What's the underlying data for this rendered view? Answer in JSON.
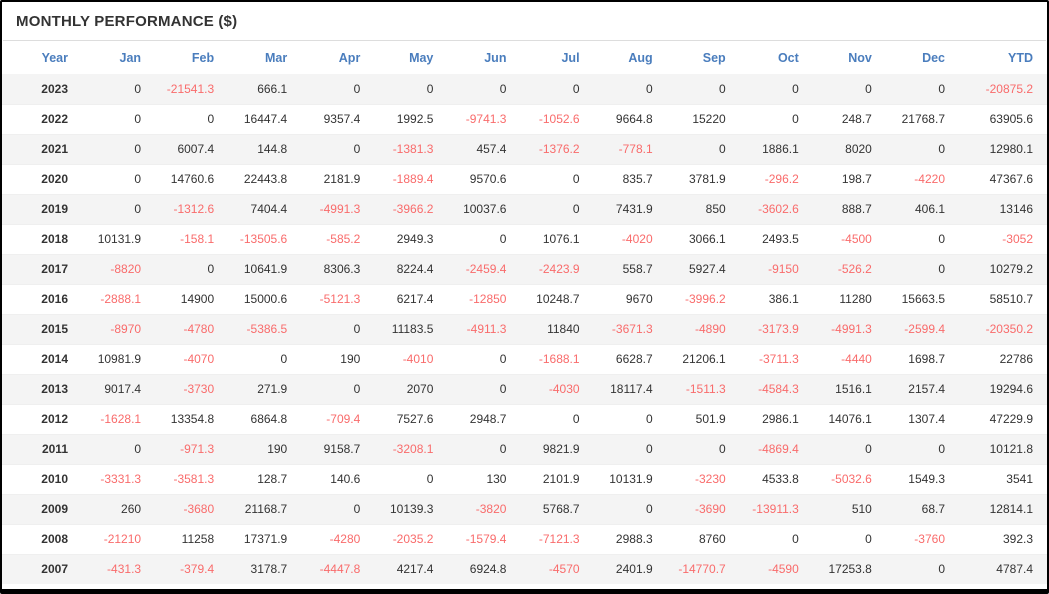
{
  "widget": {
    "title": "MONTHLY PERFORMANCE ($)"
  },
  "colors": {
    "header_text": "#4a7dbd",
    "negative_value": "#f96b6b",
    "value_text": "#333333",
    "row_stripe": "#f4f4f4",
    "divider": "#dddddd",
    "window_border": "#000000"
  },
  "table": {
    "columns": [
      "Year",
      "Jan",
      "Feb",
      "Mar",
      "Apr",
      "May",
      "Jun",
      "Jul",
      "Aug",
      "Sep",
      "Oct",
      "Nov",
      "Dec",
      "YTD"
    ],
    "rows": [
      {
        "year": "2023",
        "values": [
          "0",
          "-21541.3",
          "666.1",
          "0",
          "0",
          "0",
          "0",
          "0",
          "0",
          "0",
          "0",
          "0",
          "-20875.2"
        ]
      },
      {
        "year": "2022",
        "values": [
          "0",
          "0",
          "16447.4",
          "9357.4",
          "1992.5",
          "-9741.3",
          "-1052.6",
          "9664.8",
          "15220",
          "0",
          "248.7",
          "21768.7",
          "63905.6"
        ]
      },
      {
        "year": "2021",
        "values": [
          "0",
          "6007.4",
          "144.8",
          "0",
          "-1381.3",
          "457.4",
          "-1376.2",
          "-778.1",
          "0",
          "1886.1",
          "8020",
          "0",
          "12980.1"
        ]
      },
      {
        "year": "2020",
        "values": [
          "0",
          "14760.6",
          "22443.8",
          "2181.9",
          "-1889.4",
          "9570.6",
          "0",
          "835.7",
          "3781.9",
          "-296.2",
          "198.7",
          "-4220",
          "47367.6"
        ]
      },
      {
        "year": "2019",
        "values": [
          "0",
          "-1312.6",
          "7404.4",
          "-4991.3",
          "-3966.2",
          "10037.6",
          "0",
          "7431.9",
          "850",
          "-3602.6",
          "888.7",
          "406.1",
          "13146"
        ]
      },
      {
        "year": "2018",
        "values": [
          "10131.9",
          "-158.1",
          "-13505.6",
          "-585.2",
          "2949.3",
          "0",
          "1076.1",
          "-4020",
          "3066.1",
          "2493.5",
          "-4500",
          "0",
          "-3052"
        ]
      },
      {
        "year": "2017",
        "values": [
          "-8820",
          "0",
          "10641.9",
          "8306.3",
          "8224.4",
          "-2459.4",
          "-2423.9",
          "558.7",
          "5927.4",
          "-9150",
          "-526.2",
          "0",
          "10279.2"
        ]
      },
      {
        "year": "2016",
        "values": [
          "-2888.1",
          "14900",
          "15000.6",
          "-5121.3",
          "6217.4",
          "-12850",
          "10248.7",
          "9670",
          "-3996.2",
          "386.1",
          "11280",
          "15663.5",
          "58510.7"
        ]
      },
      {
        "year": "2015",
        "values": [
          "-8970",
          "-4780",
          "-5386.5",
          "0",
          "11183.5",
          "-4911.3",
          "11840",
          "-3671.3",
          "-4890",
          "-3173.9",
          "-4991.3",
          "-2599.4",
          "-20350.2"
        ]
      },
      {
        "year": "2014",
        "values": [
          "10981.9",
          "-4070",
          "0",
          "190",
          "-4010",
          "0",
          "-1688.1",
          "6628.7",
          "21206.1",
          "-3711.3",
          "-4440",
          "1698.7",
          "22786"
        ]
      },
      {
        "year": "2013",
        "values": [
          "9017.4",
          "-3730",
          "271.9",
          "0",
          "2070",
          "0",
          "-4030",
          "18117.4",
          "-1511.3",
          "-4584.3",
          "1516.1",
          "2157.4",
          "19294.6"
        ]
      },
      {
        "year": "2012",
        "values": [
          "-1628.1",
          "13354.8",
          "6864.8",
          "-709.4",
          "7527.6",
          "2948.7",
          "0",
          "0",
          "501.9",
          "2986.1",
          "14076.1",
          "1307.4",
          "47229.9"
        ]
      },
      {
        "year": "2011",
        "values": [
          "0",
          "-971.3",
          "190",
          "9158.7",
          "-3208.1",
          "0",
          "9821.9",
          "0",
          "0",
          "-4869.4",
          "0",
          "0",
          "10121.8"
        ]
      },
      {
        "year": "2010",
        "values": [
          "-3331.3",
          "-3581.3",
          "128.7",
          "140.6",
          "0",
          "130",
          "2101.9",
          "10131.9",
          "-3230",
          "4533.8",
          "-5032.6",
          "1549.3",
          "3541"
        ]
      },
      {
        "year": "2009",
        "values": [
          "260",
          "-3680",
          "21168.7",
          "0",
          "10139.3",
          "-3820",
          "5768.7",
          "0",
          "-3690",
          "-13911.3",
          "510",
          "68.7",
          "12814.1"
        ]
      },
      {
        "year": "2008",
        "values": [
          "-21210",
          "11258",
          "17371.9",
          "-4280",
          "-2035.2",
          "-1579.4",
          "-7121.3",
          "2988.3",
          "8760",
          "0",
          "0",
          "-3760",
          "392.3"
        ]
      },
      {
        "year": "2007",
        "values": [
          "-431.3",
          "-379.4",
          "3178.7",
          "-4447.8",
          "4217.4",
          "6924.8",
          "-4570",
          "2401.9",
          "-14770.7",
          "-4590",
          "17253.8",
          "0",
          "4787.4"
        ]
      }
    ]
  }
}
